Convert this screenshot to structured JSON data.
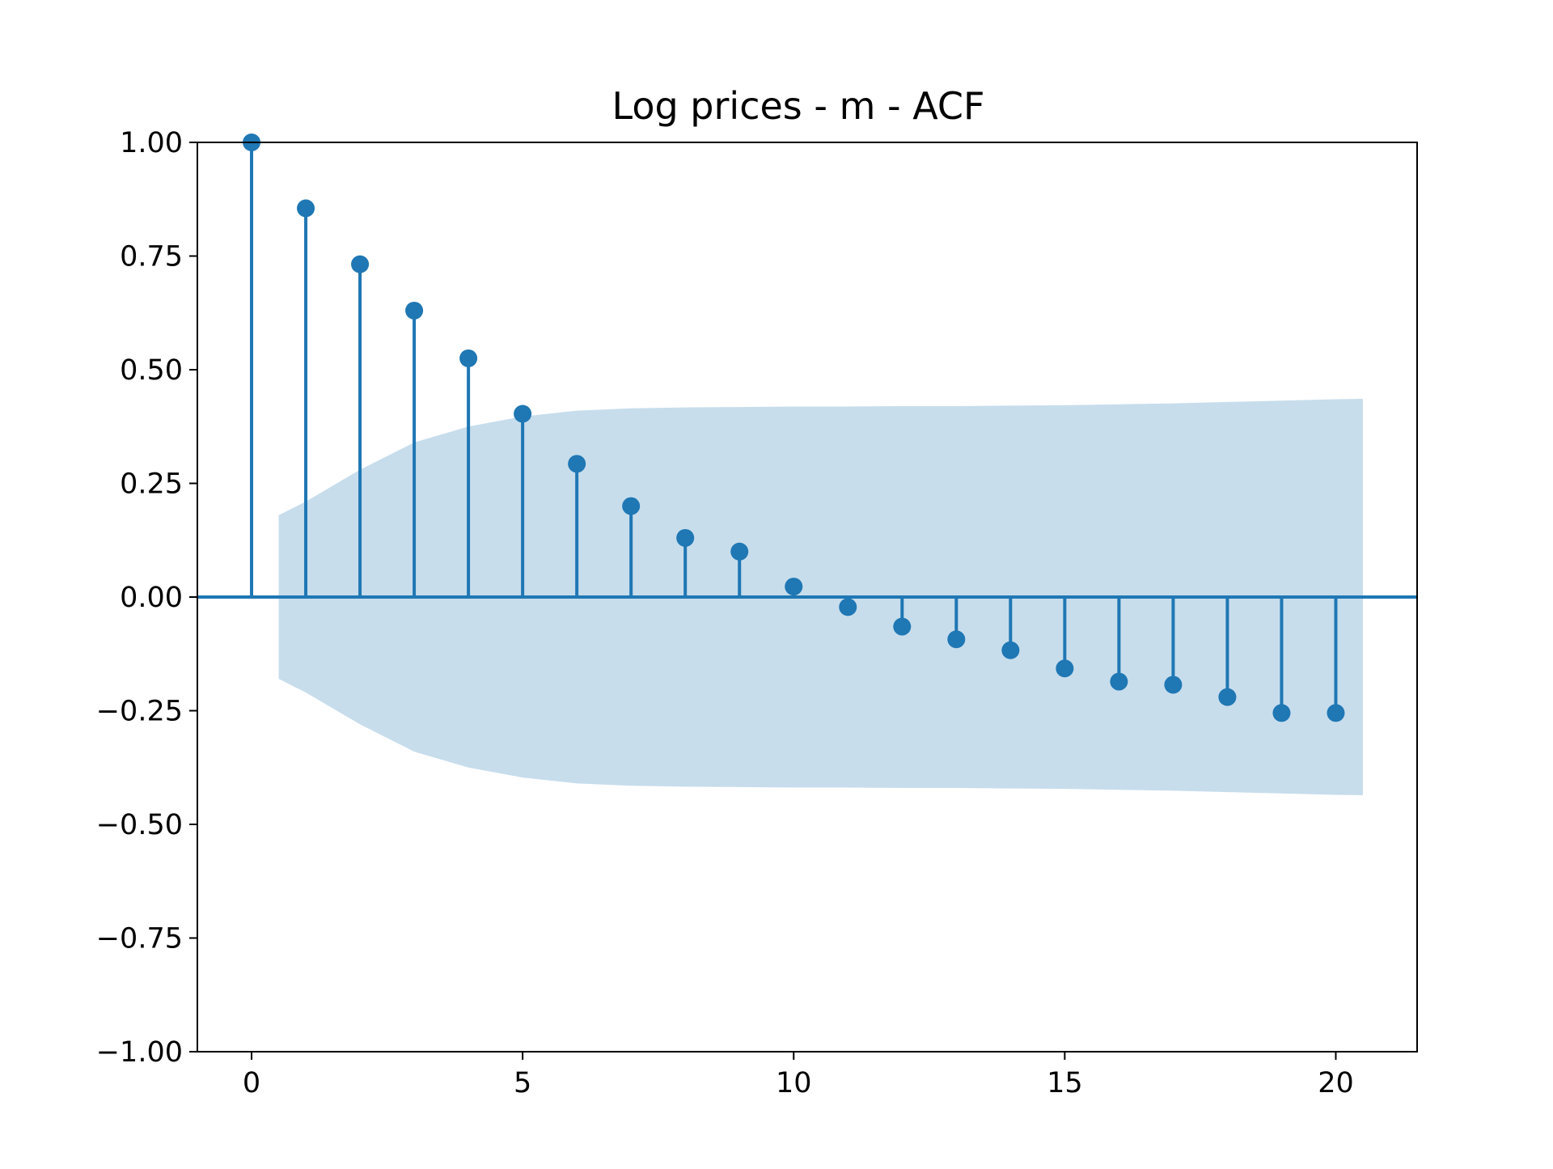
{
  "colors": {
    "series": "#1f77b4",
    "confidence_band": "#1f77b4",
    "axis": "#000000",
    "background": "#ffffff"
  },
  "chart_data": {
    "type": "scatter",
    "subtype": "stem",
    "title": "Log prices - m - ACF",
    "xlabel": "",
    "ylabel": "",
    "xlim": [
      -1,
      21.5
    ],
    "ylim": [
      -1.0,
      1.0
    ],
    "grid": false,
    "legend": "none",
    "x_ticks": [
      0,
      5,
      10,
      15,
      20
    ],
    "x_tick_labels": [
      "0",
      "5",
      "10",
      "15",
      "20"
    ],
    "y_ticks": [
      1.0,
      0.75,
      0.5,
      0.25,
      0.0,
      -0.25,
      -0.5,
      -0.75,
      -1.0
    ],
    "y_tick_labels": [
      "1.00",
      "0.75",
      "0.50",
      "0.25",
      "0.00",
      "−0.25",
      "−0.50",
      "−0.75",
      "−1.00"
    ],
    "lags": [
      0,
      1,
      2,
      3,
      4,
      5,
      6,
      7,
      8,
      9,
      10,
      11,
      12,
      13,
      14,
      15,
      16,
      17,
      18,
      19,
      20
    ],
    "acf": [
      1.0,
      0.855,
      0.732,
      0.63,
      0.525,
      0.403,
      0.293,
      0.2,
      0.13,
      0.1,
      0.023,
      -0.022,
      -0.065,
      -0.093,
      -0.117,
      -0.157,
      -0.186,
      -0.193,
      -0.22,
      -0.255,
      -0.255
    ],
    "confidence_band": {
      "x": [
        0.5,
        1,
        2,
        3,
        4,
        5,
        6,
        7,
        8,
        9,
        10,
        11,
        12,
        13,
        14,
        15,
        16,
        17,
        18,
        19,
        20,
        20.5
      ],
      "upper": [
        0.18,
        0.21,
        0.28,
        0.34,
        0.375,
        0.397,
        0.41,
        0.415,
        0.417,
        0.418,
        0.419,
        0.419,
        0.42,
        0.42,
        0.421,
        0.422,
        0.424,
        0.426,
        0.429,
        0.432,
        0.435,
        0.436
      ],
      "lower": [
        -0.18,
        -0.21,
        -0.28,
        -0.34,
        -0.375,
        -0.397,
        -0.41,
        -0.415,
        -0.417,
        -0.418,
        -0.419,
        -0.419,
        -0.42,
        -0.42,
        -0.421,
        -0.422,
        -0.424,
        -0.426,
        -0.429,
        -0.432,
        -0.435,
        -0.436
      ]
    }
  }
}
